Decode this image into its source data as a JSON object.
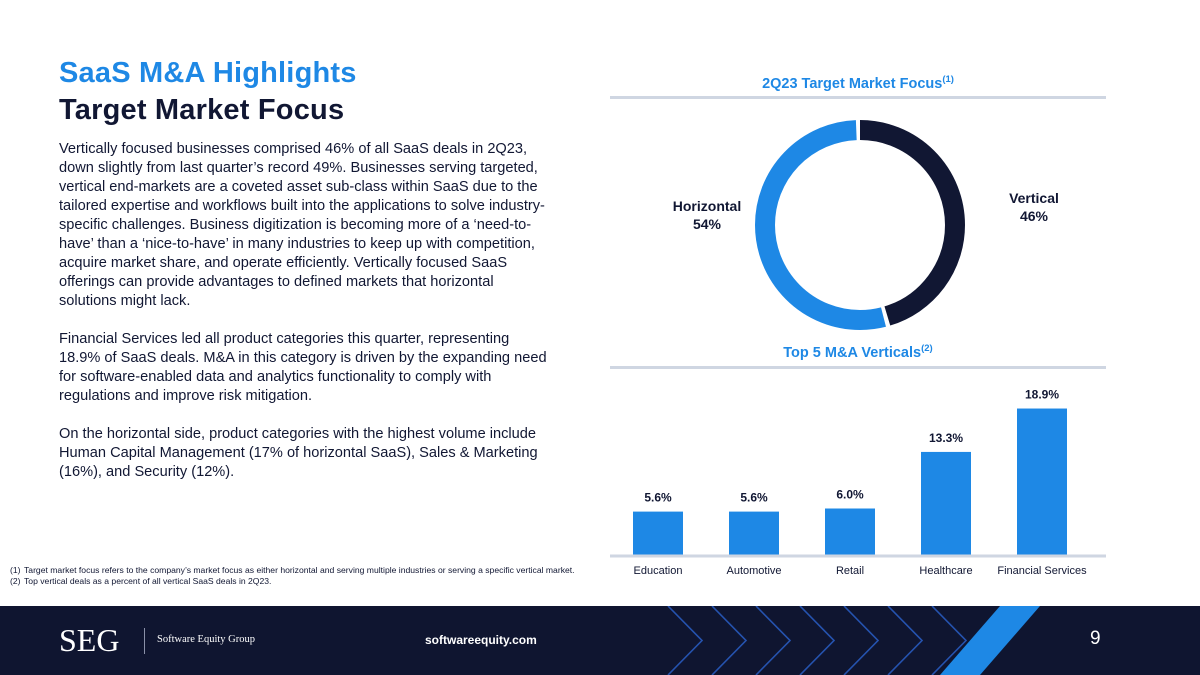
{
  "header": {
    "title": "SaaS M&A Highlights",
    "subtitle": "Target Market Focus"
  },
  "body": {
    "paragraphs": [
      "Vertically focused businesses comprised 46% of all SaaS deals in 2Q23, down slightly from last quarter’s record 49%. Businesses serving targeted, vertical end-markets are a coveted asset sub-class within SaaS due to the tailored expertise and workflows built into the applications to solve industry-specific challenges. Business digitization is becoming more of a ‘need-to-have’ than a ‘nice-to-have’ in many industries to keep up with competition, acquire market share, and operate efficiently. Vertically focused SaaS offerings can provide advantages to defined markets that horizontal solutions might lack.",
      "Financial Services led all product categories this quarter, representing 18.9% of SaaS deals. M&A in this category is driven by the expanding need for software-enabled data and analytics functionality to comply with regulations and improve risk mitigation.",
      "On the horizontal side, product categories with the highest volume include Human Capital Management (17% of horizontal SaaS), Sales & Marketing (16%), and Security (12%)."
    ]
  },
  "footnotes": [
    {
      "num": "(1)",
      "text": "Target market focus refers to the company’s market focus as either horizontal and serving multiple industries or serving a specific vertical market."
    },
    {
      "num": "(2)",
      "text": "Top vertical deals as a percent of all vertical SaaS deals in 2Q23."
    }
  ],
  "chart_data": [
    {
      "type": "pie",
      "title": "2Q23 Target Market Focus",
      "title_sup": "(1)",
      "hole": true,
      "slices": [
        {
          "label": "Vertical",
          "value": 46,
          "display": "46%",
          "color": "#111733"
        },
        {
          "label": "Horizontal",
          "value": 54,
          "display": "54%",
          "color": "#1e88e5"
        }
      ]
    },
    {
      "type": "bar",
      "title": "Top 5 M&A Verticals",
      "title_sup": "(2)",
      "categories": [
        "Education",
        "Automotive",
        "Retail",
        "Healthcare",
        "Financial Services"
      ],
      "values": [
        5.6,
        5.6,
        6.0,
        13.3,
        18.9
      ],
      "labels": [
        "5.6%",
        "5.6%",
        "6.0%",
        "13.3%",
        "18.9%"
      ],
      "ylim": [
        0,
        20
      ],
      "color": "#1e88e5"
    }
  ],
  "footer": {
    "logo": "SEG",
    "company": "Software Equity Group",
    "website": "softwareequity.com",
    "page": "9"
  }
}
